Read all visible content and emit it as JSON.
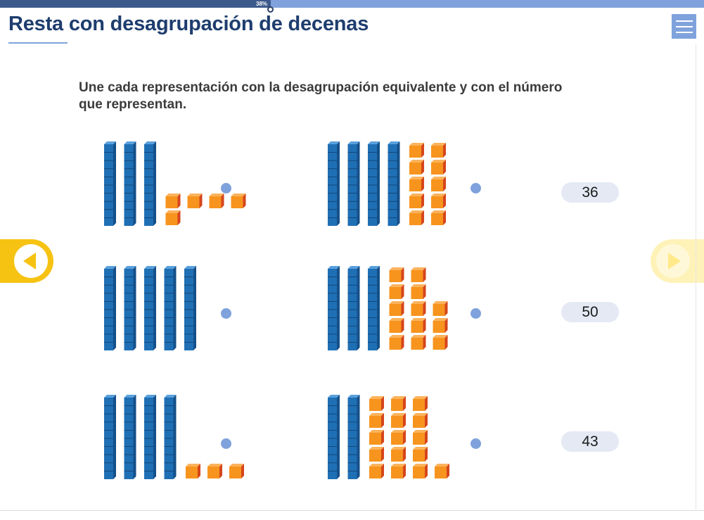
{
  "progress": {
    "label": "38%",
    "value": 0.385
  },
  "header": {
    "title": "Resta con desagrupación de decenas"
  },
  "instruction": "Une cada representación con la desagrupación equivalente y con el número que representan.",
  "colors": {
    "ten_rod": "#1f6fb4",
    "unit_cube": "#f7941e",
    "dot": "#7fa2dc",
    "pill": "#e4e9f4",
    "nav": "#f6c313"
  },
  "icons": {
    "menu": "hamburger-menu-icon",
    "prev": "arrow-left-icon",
    "next": "arrow-right-icon"
  },
  "rows": [
    {
      "left": {
        "tens": 3,
        "units": [
          [
            2,
            1
          ],
          [
            2,
            0
          ]
        ]
      },
      "right": {
        "tens": 4,
        "units": [
          [
            2,
            2,
            2,
            2,
            2
          ]
        ]
      },
      "number": "36"
    },
    {
      "left": {
        "tens": 5,
        "units": []
      },
      "right": {
        "tens": 3,
        "units": [
          [
            2,
            2,
            3,
            3,
            3
          ]
        ]
      },
      "number": "50"
    },
    {
      "left": {
        "tens": 4,
        "units": [
          [
            3
          ]
        ]
      },
      "right": {
        "tens": 2,
        "units": [
          [
            3,
            3,
            3,
            3,
            4
          ]
        ]
      },
      "number": "43"
    }
  ]
}
